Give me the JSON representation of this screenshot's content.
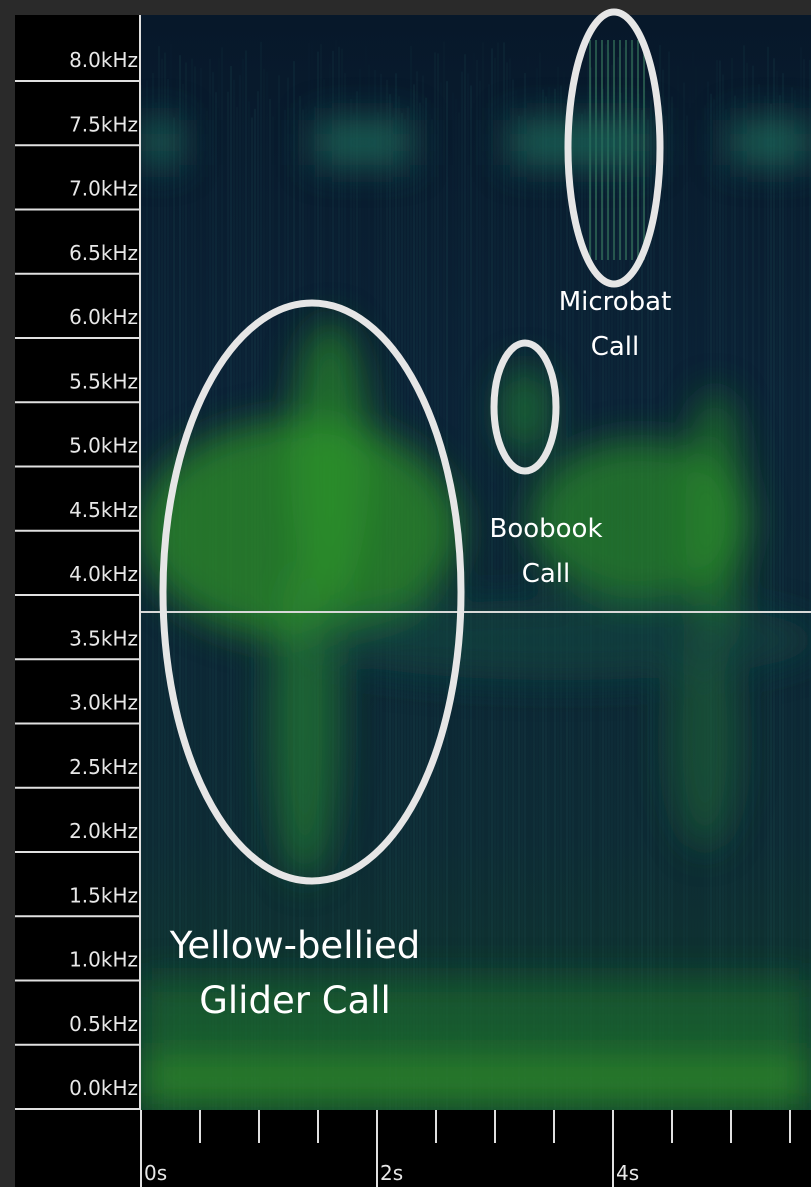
{
  "y_axis": {
    "labels": [
      "8.0kHz",
      "7.5kHz",
      "7.0kHz",
      "6.5kHz",
      "6.0kHz",
      "5.5kHz",
      "5.0kHz",
      "4.5kHz",
      "4.0kHz",
      "3.5kHz",
      "3.0kHz",
      "2.5kHz",
      "2.0kHz",
      "1.5kHz",
      "1.0kHz",
      "0.5kHz",
      "0.0kHz"
    ]
  },
  "x_axis": {
    "labels": [
      "0s",
      "2s",
      "4s"
    ]
  },
  "annotations": [
    {
      "lines": [
        "Microbat",
        "Call"
      ]
    },
    {
      "lines": [
        "Boobook",
        "Call"
      ]
    },
    {
      "lines": [
        "Yellow-bellied",
        "Glider Call"
      ]
    }
  ]
}
